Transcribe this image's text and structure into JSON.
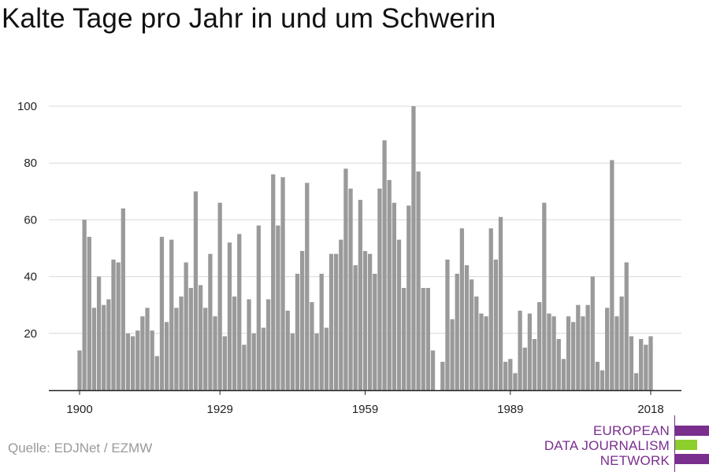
{
  "title": "Kalte Tage pro Jahr in und um Schwerin",
  "source": "Quelle: EDJNet / EZMW",
  "logo": {
    "line1": "EUROPEAN",
    "line2": "DATA JOURNALISM",
    "line3": "NETWORK",
    "colors": {
      "primary": "#7a2e8e",
      "accent": "#8ccf2c"
    }
  },
  "chart_data": {
    "type": "bar",
    "x_start": 1900,
    "x_end": 2018,
    "x_ticks": [
      1900,
      1929,
      1959,
      1989,
      2018
    ],
    "y_ticks": [
      20,
      40,
      60,
      80,
      100
    ],
    "ylim": [
      0,
      100
    ],
    "grid": true,
    "bar_color": "#9a9a9a",
    "values": [
      14,
      60,
      54,
      29,
      40,
      30,
      32,
      46,
      45,
      64,
      20,
      19,
      21,
      26,
      29,
      21,
      12,
      54,
      24,
      53,
      29,
      33,
      45,
      36,
      70,
      37,
      29,
      48,
      26,
      66,
      19,
      52,
      33,
      55,
      16,
      32,
      20,
      58,
      22,
      32,
      76,
      58,
      75,
      28,
      20,
      41,
      49,
      73,
      31,
      20,
      41,
      22,
      48,
      48,
      53,
      78,
      71,
      44,
      67,
      49,
      48,
      41,
      71,
      88,
      74,
      66,
      53,
      36,
      65,
      100,
      77,
      36,
      36,
      14,
      0,
      10,
      46,
      25,
      41,
      57,
      44,
      39,
      33,
      27,
      26,
      57,
      46,
      61,
      10,
      11,
      6,
      28,
      15,
      27,
      18,
      31,
      66,
      27,
      26,
      18,
      11,
      26,
      24,
      30,
      26,
      30,
      40,
      10,
      7,
      29,
      81,
      26,
      33,
      45,
      19,
      6,
      18,
      16,
      19
    ]
  }
}
